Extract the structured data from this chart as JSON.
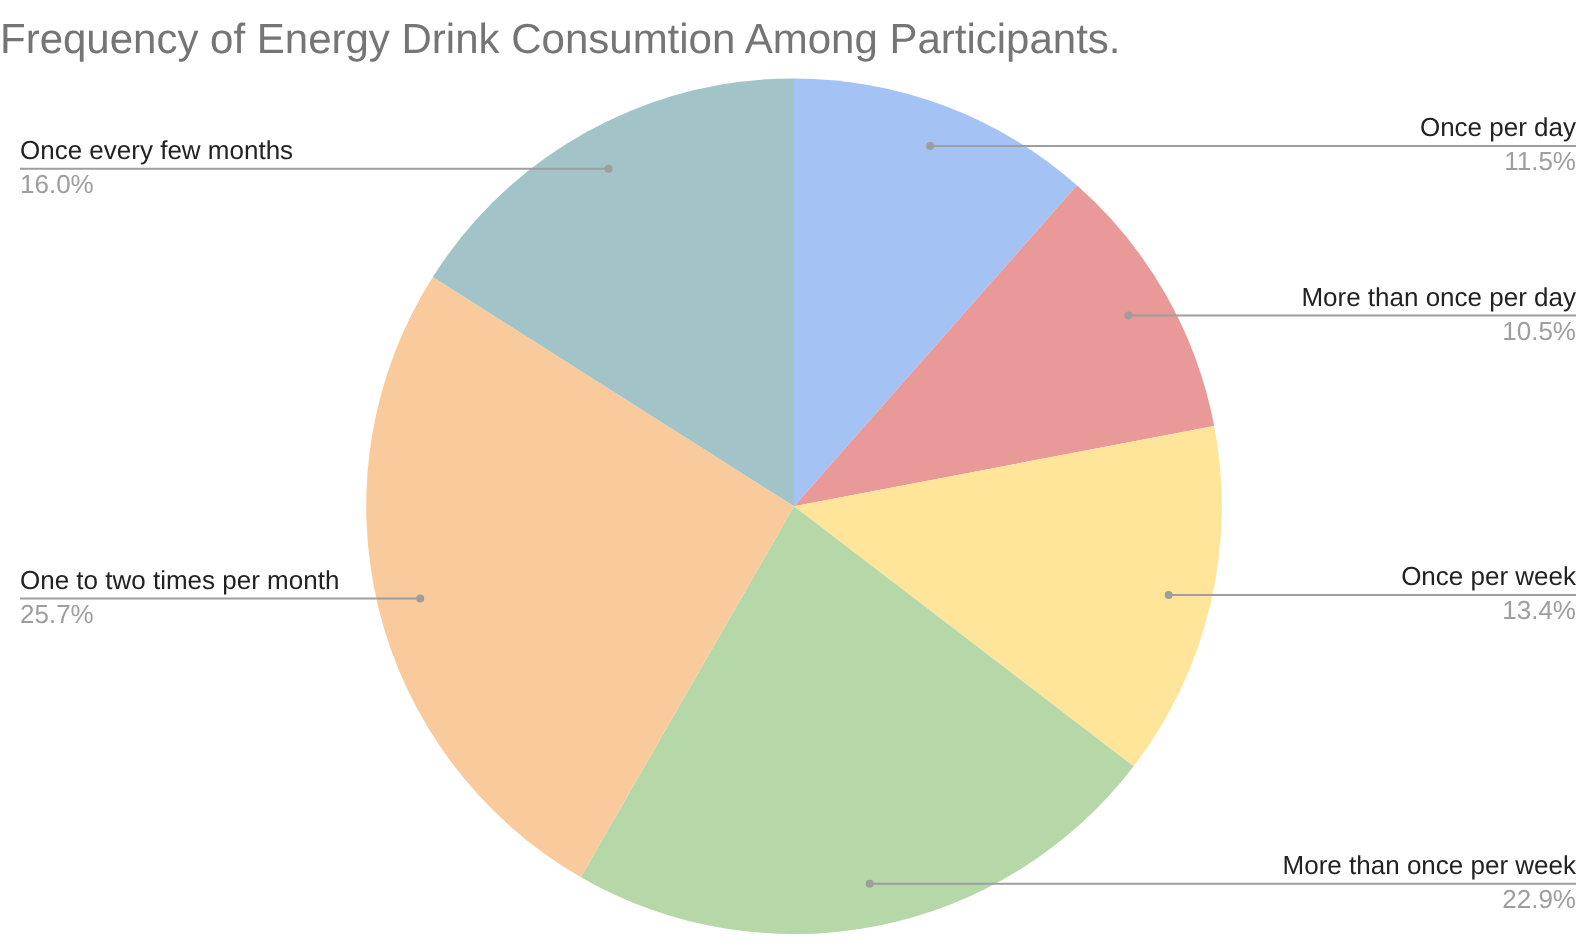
{
  "chart_data": {
    "type": "pie",
    "title": "Frequency of Energy Drink Consumtion Among Participants.",
    "categories": [
      "Once per day",
      "More than once per day",
      "Once per week",
      "More than once per week",
      "One to two times per month",
      "Once every few months"
    ],
    "values": [
      11.5,
      10.5,
      13.4,
      22.9,
      25.7,
      16.0
    ],
    "value_labels": [
      "11.5%",
      "10.5%",
      "13.4%",
      "22.9%",
      "25.7%",
      "16.0%"
    ],
    "colors": [
      "#a4c2f4",
      "#ea9999",
      "#ffe599",
      "#b6d7a8",
      "#f9cb9c",
      "#a2c4c9"
    ],
    "legend": false
  }
}
